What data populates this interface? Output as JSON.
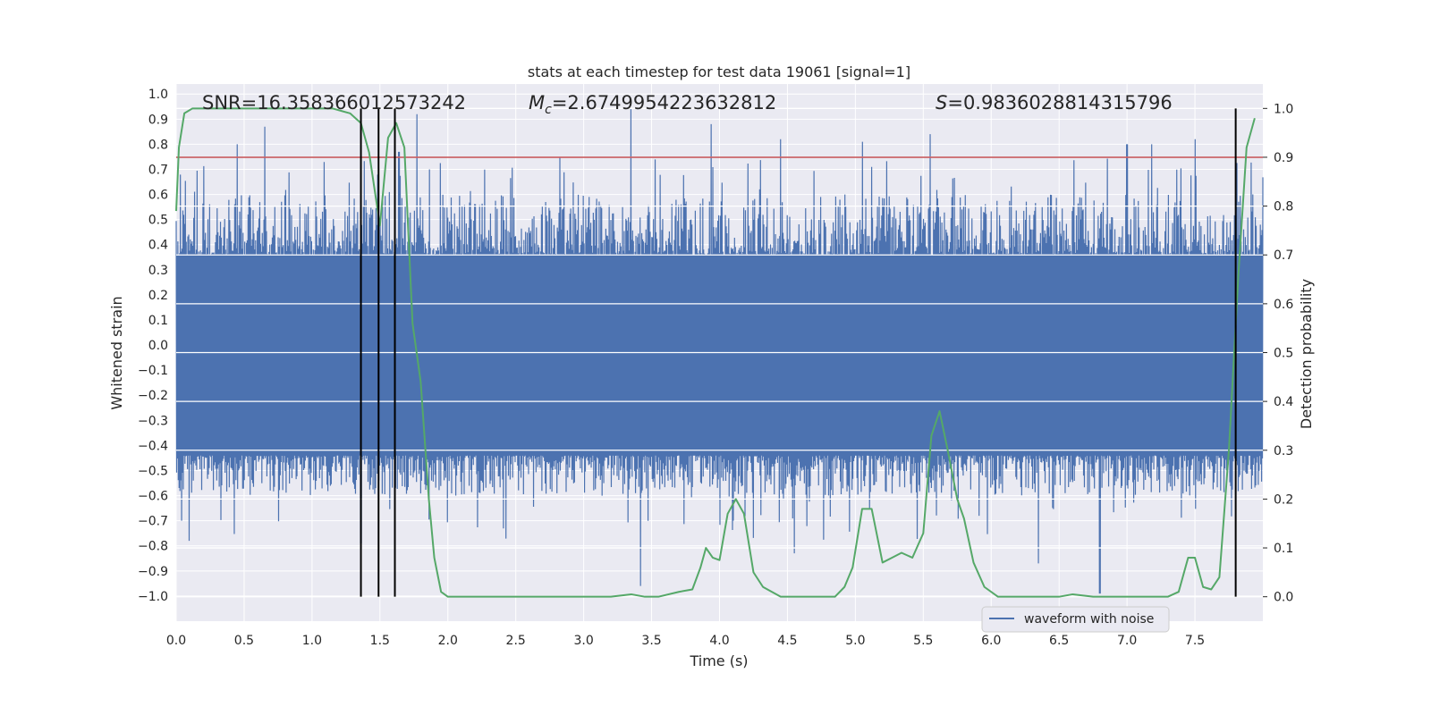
{
  "chart_data": {
    "type": "line",
    "title": "stats at each timestep for test data 19061 [signal=1]",
    "xlabel": "Time (s)",
    "ylabel_left": "Whitened strain",
    "ylabel_right": "Detection probability",
    "xlim": [
      0.0,
      8.0
    ],
    "ylim_left": [
      -1.1,
      1.04
    ],
    "ylim_right": [
      -0.05,
      1.05
    ],
    "grid": true,
    "xticks": [
      0.0,
      0.5,
      1.0,
      1.5,
      2.0,
      2.5,
      3.0,
      3.5,
      4.0,
      4.5,
      5.0,
      5.5,
      6.0,
      6.5,
      7.0,
      7.5
    ],
    "xtick_labels": [
      "0.0",
      "0.5",
      "1.0",
      "1.5",
      "2.0",
      "2.5",
      "3.0",
      "3.5",
      "4.0",
      "4.5",
      "5.0",
      "5.5",
      "6.0",
      "6.5",
      "7.0",
      "7.5"
    ],
    "yticks_left": [
      -1.0,
      -0.9,
      -0.8,
      -0.7,
      -0.6,
      -0.5,
      -0.4,
      -0.3,
      -0.2,
      -0.1,
      0.0,
      0.1,
      0.2,
      0.3,
      0.4,
      0.5,
      0.6,
      0.7,
      0.8,
      0.9,
      1.0
    ],
    "ytick_labels_left": [
      "−1.0",
      "−0.9",
      "−0.8",
      "−0.7",
      "−0.6",
      "−0.5",
      "−0.4",
      "−0.3",
      "−0.2",
      "−0.1",
      "0.0",
      "0.1",
      "0.2",
      "0.3",
      "0.4",
      "0.5",
      "0.6",
      "0.7",
      "0.8",
      "0.9",
      "1.0"
    ],
    "yticks_right": [
      0.0,
      0.1,
      0.2,
      0.3,
      0.4,
      0.5,
      0.6,
      0.7,
      0.8,
      0.9,
      1.0
    ],
    "ytick_labels_right": [
      "0.0",
      "0.1",
      "0.2",
      "0.3",
      "0.4",
      "0.5",
      "0.6",
      "0.7",
      "0.8",
      "0.9",
      "1.0"
    ],
    "annotations": {
      "snr": "SNR=16.358366012573242",
      "mc_symbol": "M",
      "mc_subscript": "c",
      "mc_value": "=2.6749954223632812",
      "s_symbol": "S",
      "s_value": "=0.9836028814315796"
    },
    "legend": {
      "entries": [
        "waveform with noise"
      ],
      "location": "lower right"
    },
    "waveform": {
      "name": "waveform with noise",
      "color": "#4c72b0",
      "x_range": [
        0.0,
        8.0
      ],
      "core_band": [
        -0.44,
        0.36
      ],
      "typical_envelope": [
        -0.6,
        0.6
      ],
      "extreme_peaks": [
        {
          "x": 0.45,
          "y": 0.8
        },
        {
          "x": 0.65,
          "y": 0.87
        },
        {
          "x": 1.36,
          "y": -0.79
        },
        {
          "x": 1.64,
          "y": 0.77
        },
        {
          "x": 1.77,
          "y": 0.92
        },
        {
          "x": 3.35,
          "y": 0.94
        },
        {
          "x": 3.42,
          "y": -0.96
        },
        {
          "x": 3.94,
          "y": 0.88
        },
        {
          "x": 4.1,
          "y": -0.7
        },
        {
          "x": 4.45,
          "y": 0.82
        },
        {
          "x": 4.55,
          "y": -0.83
        },
        {
          "x": 5.05,
          "y": 0.81
        },
        {
          "x": 5.55,
          "y": 0.84
        },
        {
          "x": 6.35,
          "y": -0.87
        },
        {
          "x": 6.8,
          "y": -0.99
        },
        {
          "x": 7.0,
          "y": 0.8
        },
        {
          "x": 7.18,
          "y": 0.8
        },
        {
          "x": 7.5,
          "y": 0.82
        }
      ]
    },
    "detection_probability": {
      "color": "#55a868",
      "x": [
        0.0,
        0.02,
        0.06,
        0.12,
        0.2,
        0.5,
        0.8,
        1.0,
        1.15,
        1.28,
        1.36,
        1.42,
        1.5,
        1.56,
        1.62,
        1.68,
        1.74,
        1.8,
        1.86,
        1.9,
        1.95,
        2.0,
        2.2,
        2.5,
        2.7,
        2.85,
        3.0,
        3.2,
        3.35,
        3.45,
        3.55,
        3.7,
        3.8,
        3.86,
        3.9,
        3.95,
        4.0,
        4.06,
        4.12,
        4.18,
        4.25,
        4.32,
        4.45,
        4.55,
        4.7,
        4.85,
        4.92,
        4.98,
        5.05,
        5.12,
        5.2,
        5.27,
        5.34,
        5.42,
        5.5,
        5.56,
        5.62,
        5.68,
        5.75,
        5.8,
        5.87,
        5.95,
        6.05,
        6.3,
        6.5,
        6.6,
        6.75,
        6.9,
        7.1,
        7.3,
        7.38,
        7.45,
        7.5,
        7.56,
        7.62,
        7.68,
        7.75,
        7.82,
        7.88,
        7.94
      ],
      "y": [
        0.79,
        0.92,
        0.99,
        1.0,
        1.0,
        1.0,
        1.0,
        1.0,
        1.0,
        0.99,
        0.97,
        0.91,
        0.76,
        0.94,
        0.97,
        0.92,
        0.56,
        0.44,
        0.2,
        0.08,
        0.01,
        0.0,
        0.0,
        0.0,
        0.0,
        0.0,
        0.0,
        0.0,
        0.005,
        0.0,
        0.0,
        0.01,
        0.015,
        0.06,
        0.1,
        0.08,
        0.075,
        0.17,
        0.2,
        0.17,
        0.05,
        0.02,
        0.0,
        0.0,
        0.0,
        0.0,
        0.02,
        0.06,
        0.18,
        0.18,
        0.07,
        0.08,
        0.09,
        0.08,
        0.13,
        0.33,
        0.38,
        0.3,
        0.2,
        0.16,
        0.07,
        0.02,
        0.0,
        0.0,
        0.0,
        0.005,
        0.0,
        0.0,
        0.0,
        0.0,
        0.01,
        0.08,
        0.08,
        0.02,
        0.015,
        0.04,
        0.3,
        0.66,
        0.92,
        0.98
      ]
    },
    "threshold": {
      "value": 0.9,
      "axis": "right",
      "color": "#c44e52"
    },
    "vertical_markers": {
      "x": [
        1.36,
        1.49,
        1.61,
        7.8
      ],
      "color": "#000000"
    }
  }
}
